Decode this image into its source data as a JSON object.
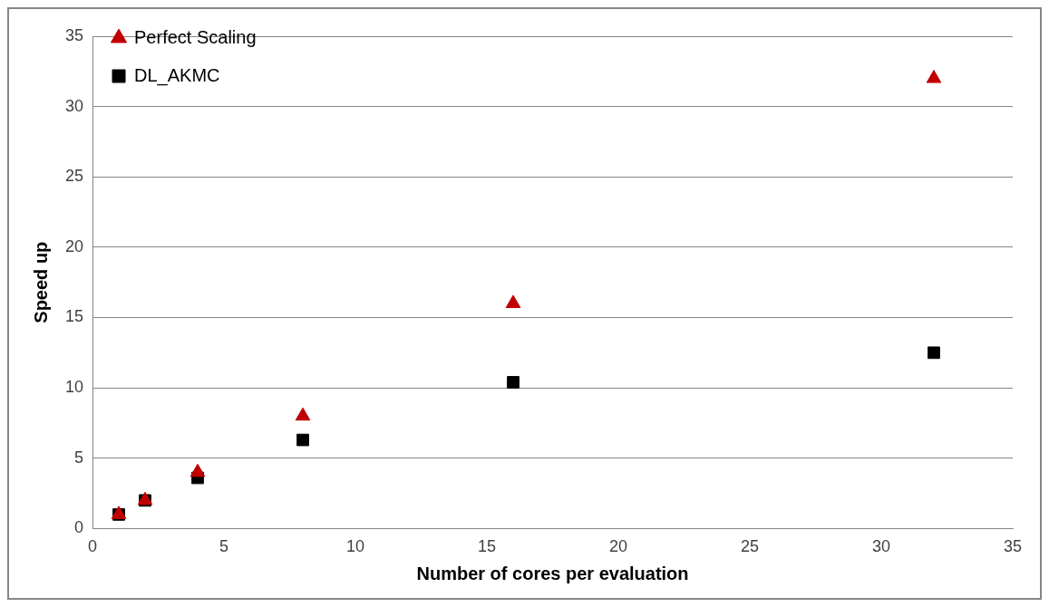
{
  "chart_data": {
    "type": "scatter",
    "xlabel": "Number of cores per evaluation",
    "ylabel": "Speed up",
    "x": [
      1,
      2,
      4,
      8,
      16,
      32
    ],
    "series": [
      {
        "name": "DL_AKMC",
        "color": "#000000",
        "marker": "square",
        "values": [
          1.0,
          2.0,
          3.6,
          6.3,
          10.4,
          12.5
        ]
      },
      {
        "name": "Perfect Scaling",
        "color": "#c00000",
        "marker": "triangle",
        "values": [
          1,
          2,
          4,
          8,
          16,
          32
        ]
      }
    ],
    "xlim": [
      0,
      35
    ],
    "xticks": [
      0,
      5,
      10,
      15,
      20,
      25,
      30,
      35
    ],
    "ylim": [
      0,
      35
    ],
    "yticks": [
      0,
      5,
      10,
      15,
      20,
      25,
      30,
      35
    ],
    "grid": "y",
    "legend": "top left"
  }
}
